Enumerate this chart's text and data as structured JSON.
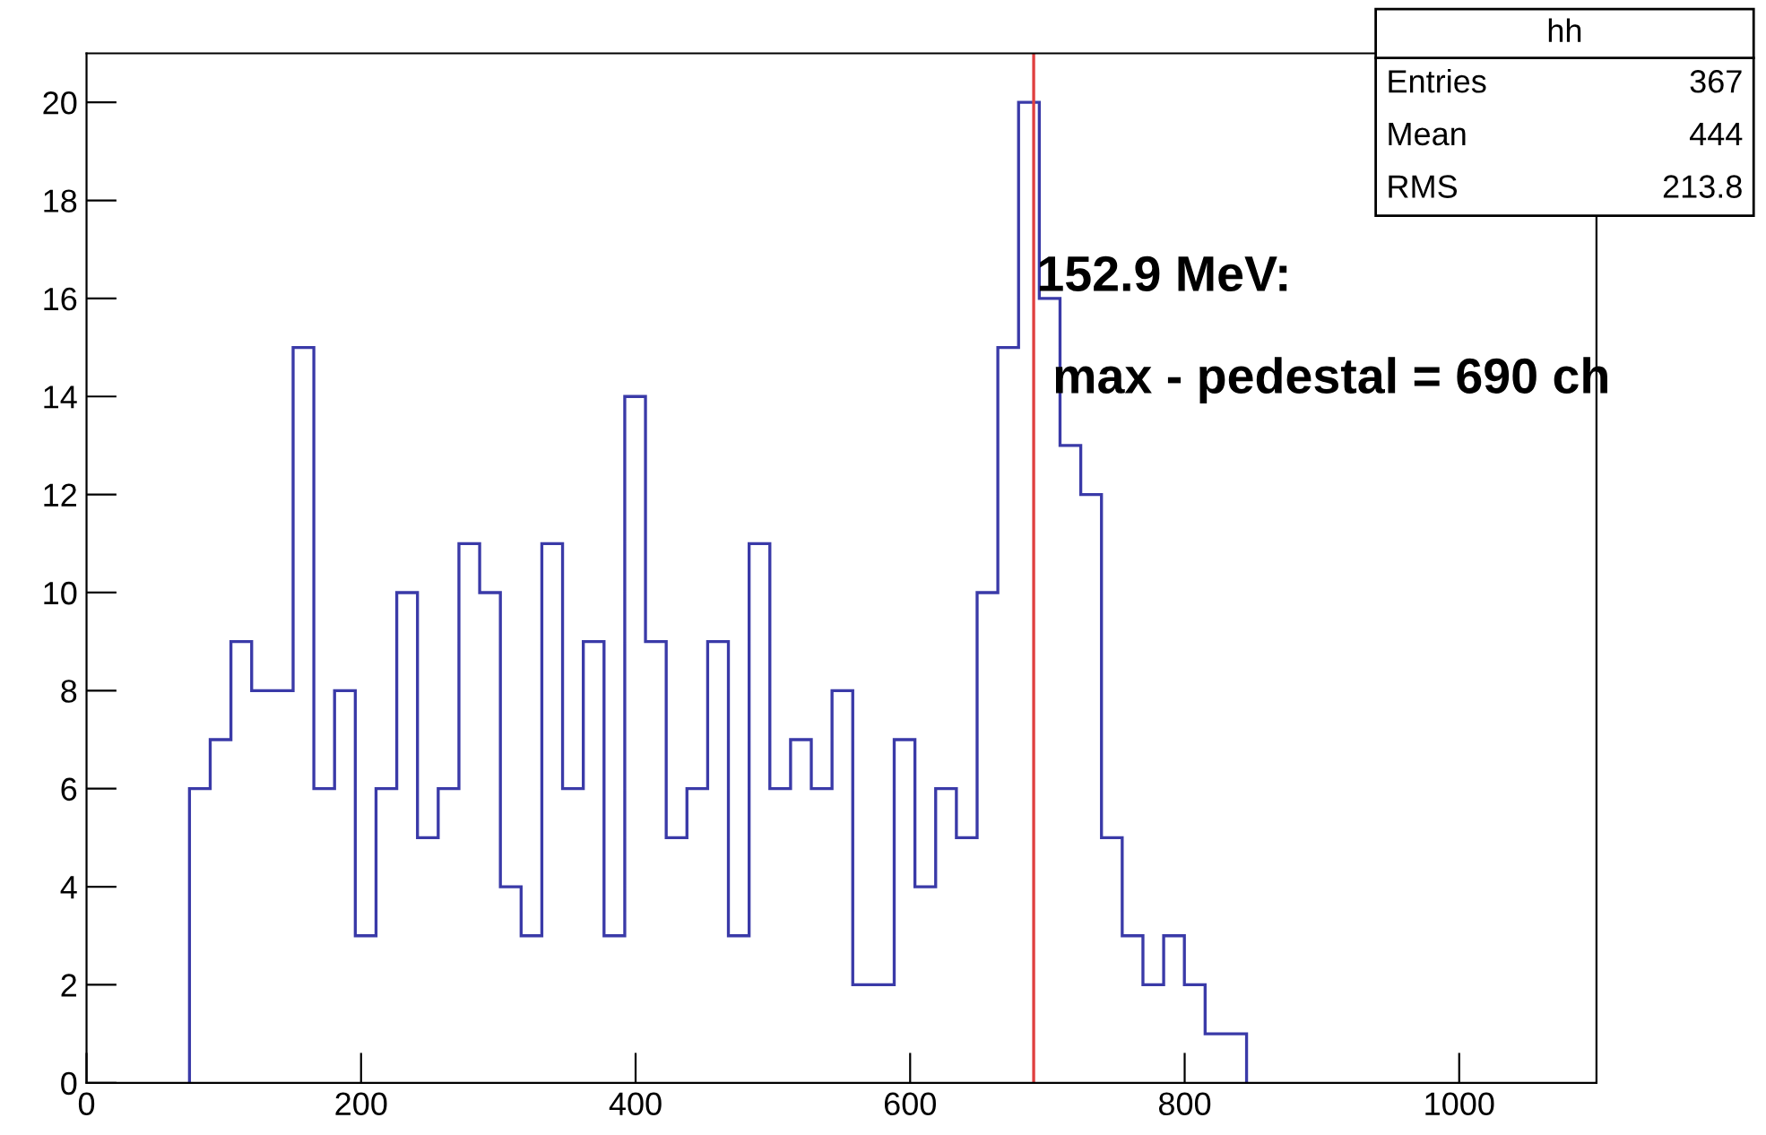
{
  "chart_data": {
    "type": "histogram",
    "bins": [
      75,
      90.1,
      105.2,
      120.3,
      135.4,
      150.5,
      165.6,
      180.7,
      195.8,
      210.9,
      226,
      241.1,
      256.2,
      271.3,
      286.4,
      301.5,
      316.6,
      331.7,
      346.8,
      361.9,
      377,
      392.1,
      407.2,
      422.3,
      437.4,
      452.5,
      467.6,
      482.7,
      497.8,
      512.9,
      528,
      543.1,
      558.2,
      573.3,
      588.4,
      603.5,
      618.6,
      633.7,
      648.8,
      663.9,
      679,
      694.1,
      709.2,
      724.3,
      739.4,
      754.5,
      769.6,
      784.7,
      799.8,
      814.9,
      830,
      845.1
    ],
    "values": [
      6,
      7,
      9,
      8,
      8,
      15,
      6,
      8,
      3,
      6,
      10,
      5,
      6,
      11,
      10,
      4,
      3,
      11,
      6,
      9,
      3,
      14,
      9,
      5,
      6,
      9,
      3,
      11,
      6,
      7,
      6,
      8,
      2,
      2,
      7,
      4,
      6,
      5,
      10,
      15,
      20,
      16,
      13,
      12,
      5,
      3,
      2,
      3,
      2,
      1,
      1
    ],
    "color": "#3a3aa8",
    "xlim": [
      0,
      1100
    ],
    "ylim": [
      0,
      21
    ],
    "xticks": [
      0,
      200,
      400,
      600,
      800,
      1000
    ],
    "yticks": [
      0,
      2,
      4,
      6,
      8,
      10,
      12,
      14,
      16,
      18,
      20
    ],
    "grid": false,
    "ref_lines": [
      {
        "axis": "x",
        "value": 690,
        "color": "#e04040"
      }
    ],
    "annotations": [
      "hh",
      "Entries",
      "367",
      "Mean",
      "444",
      "RMS",
      "213.8",
      "152.9 MeV:",
      "max - pedestal = 690 ch"
    ]
  }
}
